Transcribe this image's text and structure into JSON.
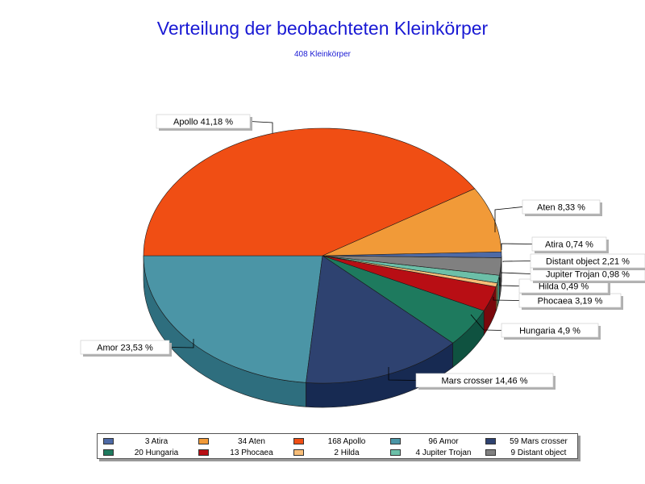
{
  "chart_data": {
    "type": "pie",
    "title": "Verteilung der beobachteten Kleinkörper",
    "subtitle": "408 Kleinkörper",
    "total": 408,
    "slices": [
      {
        "name": "Atira",
        "count": 3,
        "percent": 0.74,
        "legend": "3 Atira",
        "label": "Atira 0,74 %",
        "color": "#4e6aa6",
        "side": "#2f4470"
      },
      {
        "name": "Aten",
        "count": 34,
        "percent": 8.33,
        "legend": "34 Aten",
        "label": "Aten 8,33 %",
        "color": "#f19a38",
        "side": "#b86e1c"
      },
      {
        "name": "Apollo",
        "count": 168,
        "percent": 41.18,
        "legend": "168 Apollo",
        "label": "Apollo 41,18 %",
        "color": "#f04e14",
        "side": "#a8320a"
      },
      {
        "name": "Amor",
        "count": 96,
        "percent": 23.53,
        "legend": "96 Amor",
        "label": "Amor 23,53 %",
        "color": "#4b95a6",
        "side": "#2e6e7e"
      },
      {
        "name": "Mars crosser",
        "count": 59,
        "percent": 14.46,
        "legend": "59 Mars crosser",
        "label": "Mars crosser 14,46 %",
        "color": "#2e4270",
        "side": "#172a52"
      },
      {
        "name": "Hungaria",
        "count": 20,
        "percent": 4.9,
        "legend": "20 Hungaria",
        "label": "Hungaria 4,9 %",
        "color": "#1e7a5e",
        "side": "#0f5240"
      },
      {
        "name": "Phocaea",
        "count": 13,
        "percent": 3.19,
        "legend": "13 Phocaea",
        "label": "Phocaea 3,19 %",
        "color": "#b80e14",
        "side": "#7a080c"
      },
      {
        "name": "Hilda",
        "count": 2,
        "percent": 0.49,
        "legend": "2 Hilda",
        "label": "Hilda 0,49 %",
        "color": "#f7bd78",
        "side": "#c08a48"
      },
      {
        "name": "Jupiter Trojan",
        "count": 4,
        "percent": 0.98,
        "legend": "4 Jupiter Trojan",
        "label": "Jupiter Trojan 0,98 %",
        "color": "#6cbfa8",
        "side": "#3f8a76"
      },
      {
        "name": "Distant object",
        "count": 9,
        "percent": 2.21,
        "legend": "9 Distant object",
        "label": "Distant object 2,21 %",
        "color": "#808080",
        "side": "#505050"
      }
    ],
    "pie_order": [
      "Amor",
      "Mars crosser",
      "Hungaria",
      "Phocaea",
      "Hilda",
      "Jupiter Trojan",
      "Distant object",
      "Atira",
      "Aten",
      "Apollo"
    ],
    "legend_placement": "bottom"
  }
}
